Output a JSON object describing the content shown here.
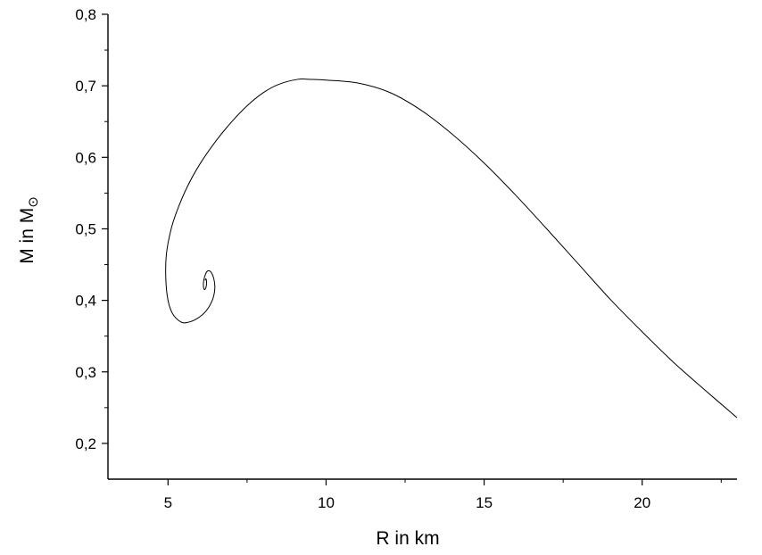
{
  "chart_data": {
    "type": "line",
    "title": "",
    "xlabel": "R in km",
    "ylabel": "M in M",
    "ylabel_sub_symbol": "⊙",
    "xlim": [
      3.1,
      23.0
    ],
    "ylim": [
      0.15,
      0.8
    ],
    "x_ticks": [
      5,
      10,
      15,
      20
    ],
    "x_tick_labels": [
      "5",
      "10",
      "15",
      "20"
    ],
    "y_ticks": [
      0.2,
      0.3,
      0.4,
      0.5,
      0.6,
      0.7,
      0.8
    ],
    "y_tick_labels": [
      "0,2",
      "0,3",
      "0,4",
      "0,5",
      "0,6",
      "0,7",
      "0,8"
    ],
    "grid": false,
    "line_color": "#000000",
    "series": [
      {
        "x": [
          23.0,
          22.0,
          21.0,
          20.0,
          19.0,
          18.0,
          17.0,
          16.0,
          15.0,
          14.0,
          13.0,
          12.0,
          11.0,
          10.0,
          9.5,
          9.1,
          8.5,
          8.0,
          7.5,
          7.0,
          6.5,
          6.0,
          5.6,
          5.3,
          5.1,
          4.95,
          4.93,
          5.0,
          5.15,
          5.4,
          5.6,
          5.9,
          6.2,
          6.4,
          6.48,
          6.45,
          6.35,
          6.25,
          6.18,
          6.13,
          6.12,
          6.15,
          6.2,
          6.22,
          6.2,
          6.17
        ],
        "y": [
          0.236,
          0.274,
          0.313,
          0.356,
          0.401,
          0.45,
          0.499,
          0.547,
          0.592,
          0.632,
          0.666,
          0.691,
          0.704,
          0.708,
          0.709,
          0.709,
          0.702,
          0.69,
          0.672,
          0.649,
          0.622,
          0.59,
          0.558,
          0.527,
          0.5,
          0.465,
          0.43,
          0.4,
          0.381,
          0.37,
          0.369,
          0.374,
          0.385,
          0.4,
          0.416,
          0.43,
          0.44,
          0.441,
          0.436,
          0.428,
          0.42,
          0.415,
          0.418,
          0.425,
          0.43,
          0.428
        ]
      }
    ]
  }
}
